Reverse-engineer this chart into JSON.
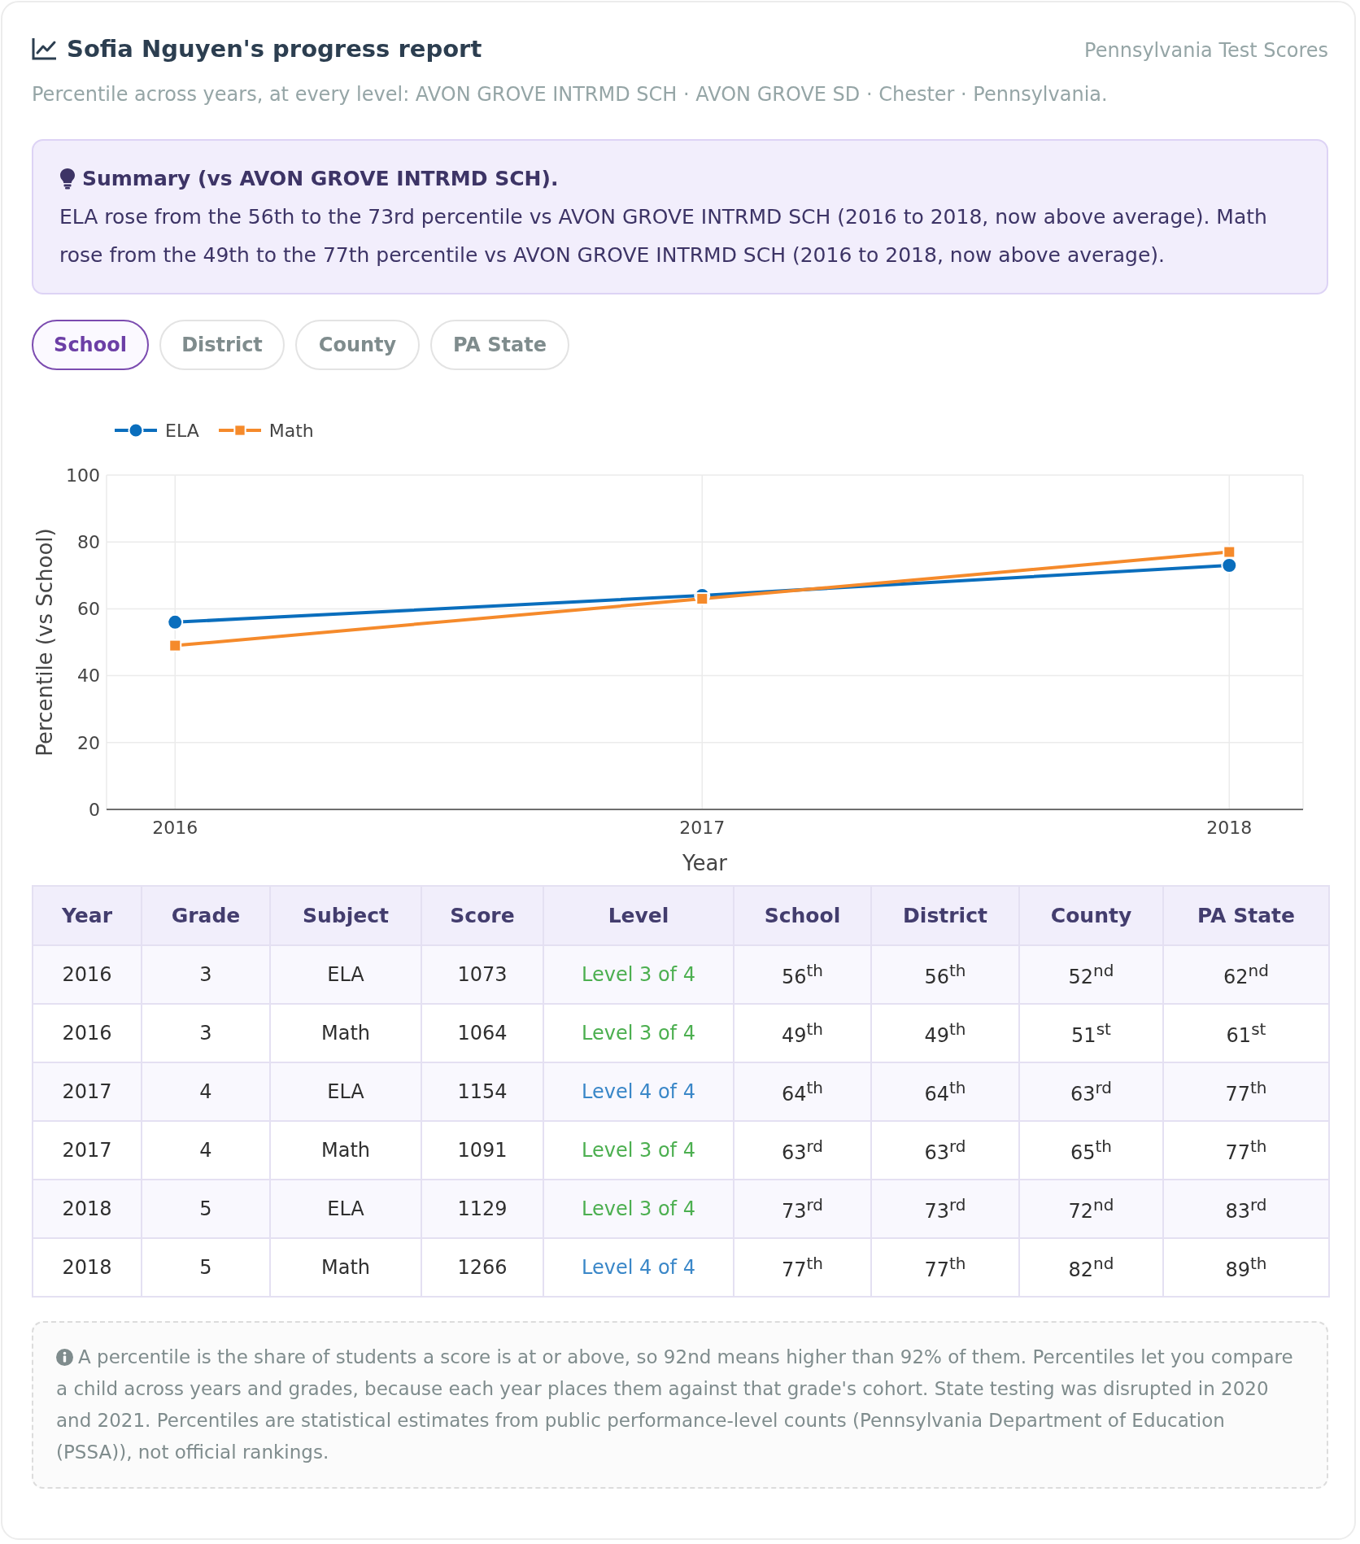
{
  "chart_data": [
    {
      "type": "line",
      "title": "Sofia Nguyen's progress report",
      "subtitle": "Percentile across years, at every level: AVON GROVE INTRMD SCH · AVON GROVE SD · Chester · Pennsylvania.",
      "annotations": [
        "Pennsylvania Test Scores",
        "Summary (vs AVON GROVE INTRMD SCH).",
        "ELA rose from the 56th to the 73rd percentile vs AVON GROVE INTRMD SCH (2016 to 2018, now above average). Math rose from the 49th to the 77th percentile vs AVON GROVE INTRMD SCH (2016 to 2018, now above average).",
        "School",
        "District",
        "County",
        "PA State"
      ],
      "xlabel": "Year",
      "ylabel": "Percentile (vs School)",
      "x": [
        2016,
        2017,
        2018
      ],
      "series": [
        {
          "name": "ELA",
          "color": "#0a6ebd",
          "values": [
            56,
            64,
            73
          ],
          "marker": "circle"
        },
        {
          "name": "Math",
          "color": "#f58a2b",
          "values": [
            49,
            63,
            77
          ],
          "marker": "square"
        }
      ],
      "xlim": [
        2015.87,
        2018.14
      ],
      "xticks": [
        2016,
        2017,
        2018
      ],
      "ylim": [
        0,
        100
      ],
      "yticks": [
        0,
        20,
        40,
        60,
        80,
        100
      ],
      "grid": true,
      "legend": "top left"
    },
    {
      "type": "heatmap",
      "ylabel": "Year",
      "categories": [
        "Grade",
        "Subject",
        "Score",
        "Level",
        "School",
        "District",
        "County",
        "PA State"
      ],
      "y_categories": [
        "2016",
        "2016",
        "2017",
        "2017",
        "2018",
        "2018"
      ],
      "cells": [
        [
          null,
          null,
          null,
          null,
          null,
          null,
          null,
          null
        ],
        [
          null,
          null,
          null,
          null,
          null,
          null,
          null,
          null
        ],
        [
          null,
          null,
          null,
          null,
          null,
          null,
          null,
          null
        ],
        [
          null,
          null,
          null,
          null,
          null,
          null,
          null,
          null
        ],
        [
          null,
          null,
          null,
          null,
          null,
          null,
          null,
          null
        ],
        [
          null,
          null,
          null,
          null,
          null,
          null,
          null,
          null
        ]
      ],
      "cell_labels": [
        [
          "3",
          "ELA",
          "1073",
          "Level 3 of 4",
          "56$^{th}$",
          "56$^{th}$",
          "52$^{nd}$",
          "62$^{nd}$"
        ],
        [
          "3",
          "Math",
          "1064",
          "Level 3 of 4",
          "49$^{th}$",
          "49$^{th}$",
          "51$^{st}$",
          "61$^{st}$"
        ],
        [
          "4",
          "ELA",
          "1154",
          "Level 4 of 4",
          "64$^{th}$",
          "64$^{th}$",
          "63$^{rd}$",
          "77$^{th}$"
        ],
        [
          "4",
          "Math",
          "1091",
          "Level 3 of 4",
          "63$^{rd}$",
          "63$^{rd}$",
          "65$^{th}$",
          "77$^{th}$"
        ],
        [
          "5",
          "ELA",
          "1129",
          "Level 3 of 4",
          "73$^{rd}$",
          "73$^{rd}$",
          "72$^{nd}$",
          "83$^{rd}$"
        ],
        [
          "5",
          "Math",
          "1266",
          "Level 4 of 4",
          "77$^{th}$",
          "77$^{th}$",
          "82$^{nd}$",
          "89$^{th}$"
        ]
      ],
      "annotations": [
        "A percentile is the share of students a score is at or above, so 92nd means higher than 92% of them. Percentiles let you compare a child across years and grades, because each year places them against that grade's cohort. State testing was disrupted in 2020 and 2021. Percentiles are statistical estimates from public performance-level counts (Pennsylvania Department of Education (PSSA)), not official rankings."
      ]
    }
  ]
}
